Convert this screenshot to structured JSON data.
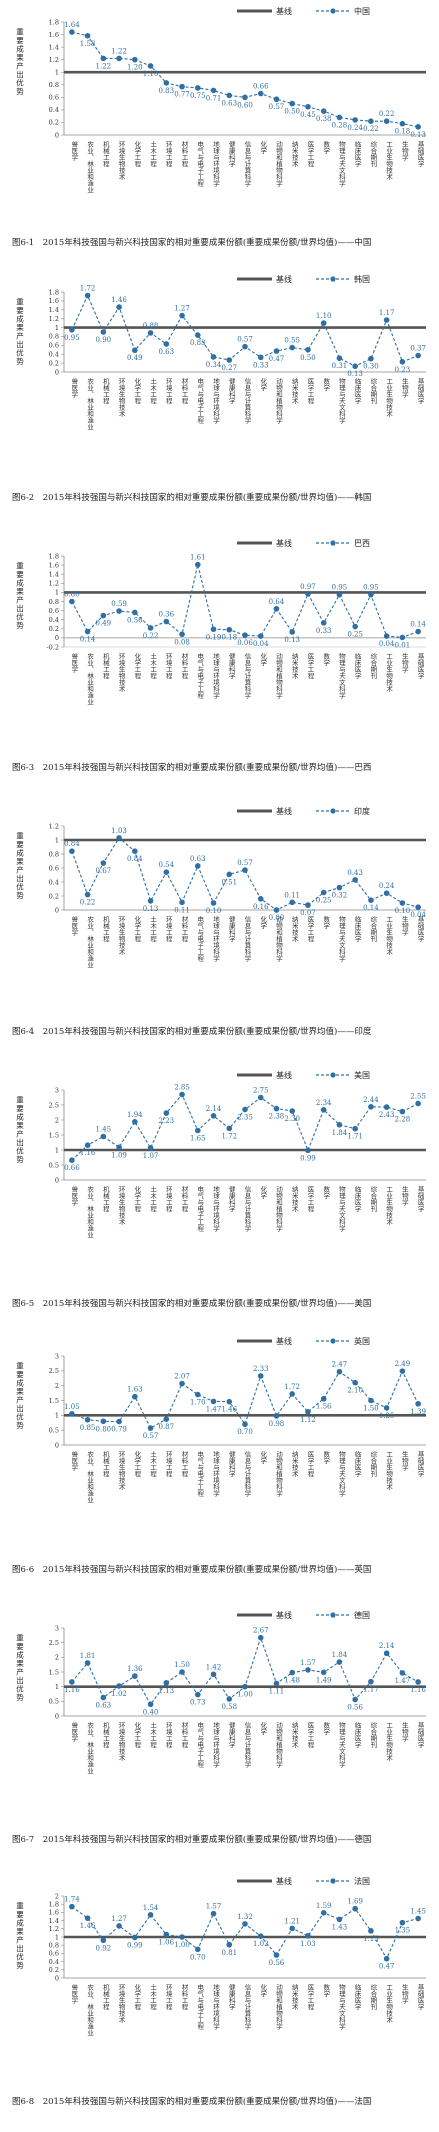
{
  "colors": {
    "baseline": "#555555",
    "series": "#2f6fa3",
    "grid": "#bbbbbb",
    "axis": "#888888"
  },
  "chart_data": [
    {
      "type": "line",
      "caption": "图6-1　2015年科技强国与新兴科技国家的相对重要成果份额(重要成果份额/世界均值)——中国",
      "ylabel": "重要成果产出优势",
      "legend": {
        "baseline": "基线",
        "series": "中国"
      },
      "ylim": [
        0,
        1.8
      ],
      "yticks": [
        "0",
        "0.2",
        "0.4",
        "0.6",
        "0.8",
        "1",
        "1.2",
        "1.4",
        "1.6",
        "1.8"
      ],
      "categories": [
        "兽医学",
        "农业、林业和渔业",
        "机械工程",
        "环境生物技术",
        "化学工程",
        "土木工程",
        "环境工程",
        "材料工程",
        "电气与电子工程",
        "地球与环境科学",
        "健康科学",
        "信息与计算科学",
        "化学",
        "动物和植物科学",
        "纳米技术",
        "医学工程",
        "数学",
        "物理与天文科学",
        "临床医学",
        "综合期刊",
        "工业生物技术",
        "生物学",
        "基础医学"
      ],
      "baseline": 1,
      "values": [
        1.64,
        1.58,
        1.22,
        1.22,
        1.2,
        1.1,
        0.83,
        0.77,
        0.75,
        0.71,
        0.63,
        0.6,
        0.66,
        0.57,
        0.5,
        0.45,
        0.38,
        0.28,
        0.24,
        0.22,
        0.22,
        0.18,
        0.13
      ]
    },
    {
      "type": "line",
      "caption": "图6-2　2015年科技强国与新兴科技国家的相对重要成果份额(重要成果份额/世界均值)——韩国",
      "ylabel": "重要成果产出优势",
      "legend": {
        "baseline": "基线",
        "series": "韩国"
      },
      "ylim": [
        0,
        1.8
      ],
      "yticks": [
        "0",
        "0.2",
        "0.4",
        "0.6",
        "0.8",
        "1",
        "1.2",
        "1.4",
        "1.6",
        "1.8"
      ],
      "categories": [
        "兽医学",
        "农业、林业和渔业",
        "机械工程",
        "环境生物技术",
        "化学工程",
        "土木工程",
        "环境工程",
        "材料工程",
        "电气与电子工程",
        "地球与环境科学",
        "健康科学",
        "信息与计算科学",
        "化学",
        "动物和植物科学",
        "纳米技术",
        "医学工程",
        "数学",
        "物理与天文科学",
        "临床医学",
        "综合期刊",
        "工业生物技术",
        "生物学",
        "基础医学"
      ],
      "baseline": 1,
      "values": [
        0.95,
        1.72,
        0.9,
        1.46,
        0.49,
        0.88,
        0.63,
        1.27,
        0.83,
        0.34,
        0.27,
        0.57,
        0.33,
        0.47,
        0.55,
        0.5,
        1.1,
        0.31,
        0.13,
        0.3,
        1.17,
        0.23,
        0.37
      ]
    },
    {
      "type": "line",
      "caption": "图6-3　2015年科技强国与新兴科技国家的相对重要成果份额(重要成果份额/世界均值)——巴西",
      "ylabel": "重要成果产出优势",
      "legend": {
        "baseline": "基线",
        "series": "巴西"
      },
      "ylim": [
        -0.2,
        1.8
      ],
      "yticks": [
        "-0.2",
        "0",
        "0.2",
        "0.4",
        "0.6",
        "0.8",
        "1",
        "1.2",
        "1.4",
        "1.6",
        "1.8"
      ],
      "categories": [
        "兽医学",
        "农业、林业和渔业",
        "机械工程",
        "环境生物技术",
        "化学工程",
        "土木工程",
        "环境工程",
        "材料工程",
        "电气与电子工程",
        "地球与环境科学",
        "健康科学",
        "信息与计算科学",
        "化学",
        "动物和植物科学",
        "纳米技术",
        "医学工程",
        "数学",
        "物理与天文科学",
        "临床医学",
        "综合期刊",
        "工业生物技术",
        "生物学",
        "基础医学"
      ],
      "baseline": 1,
      "values": [
        0.8,
        0.14,
        0.49,
        0.59,
        0.56,
        0.22,
        0.36,
        0.08,
        1.61,
        0.19,
        0.18,
        0.06,
        0.04,
        0.64,
        0.13,
        0.97,
        0.33,
        0.95,
        0.25,
        0.95,
        0.04,
        0.01,
        0.14
      ]
    },
    {
      "type": "line",
      "caption": "图6-4　2015年科技强国与新兴科技国家的相对重要成果份额(重要成果份额/世界均值)——印度",
      "ylabel": "重要成果产出优势",
      "legend": {
        "baseline": "基线",
        "series": "印度"
      },
      "ylim": [
        0,
        1.2
      ],
      "yticks": [
        "0",
        "0.2",
        "0.4",
        "0.6",
        "0.8",
        "1",
        "1.2"
      ],
      "categories": [
        "兽医学",
        "农业、林业和渔业",
        "机械工程",
        "环境生物技术",
        "化学工程",
        "土木工程",
        "环境工程",
        "材料工程",
        "电气与电子工程",
        "地球与环境科学",
        "健康科学",
        "信息与计算科学",
        "化学",
        "动物和植物科学",
        "纳米技术",
        "医学工程",
        "数学",
        "物理与天文科学",
        "临床医学",
        "综合期刊",
        "工业生物技术",
        "生物学",
        "基础医学"
      ],
      "baseline": 1,
      "values": [
        0.84,
        0.22,
        0.67,
        1.03,
        0.84,
        0.13,
        0.54,
        0.11,
        0.63,
        0.1,
        0.51,
        0.57,
        0.16,
        0.0,
        0.11,
        0.07,
        0.25,
        0.32,
        0.43,
        0.14,
        0.24,
        0.1,
        0.04
      ]
    },
    {
      "type": "line",
      "caption": "图6-5　2015年科技强国与新兴科技国家的相对重要成果份额(重要成果份额/世界均值)——美国",
      "ylabel": "重要成果产出优势",
      "legend": {
        "baseline": "基线",
        "series": "美国"
      },
      "ylim": [
        0,
        3
      ],
      "yticks": [
        "0",
        "0.5",
        "1",
        "1.5",
        "2",
        "2.5",
        "3"
      ],
      "categories": [
        "兽医学",
        "农业、林业和渔业",
        "机械工程",
        "环境生物技术",
        "化学工程",
        "土木工程",
        "环境工程",
        "材料工程",
        "电气与电子工程",
        "地球与环境科学",
        "健康科学",
        "信息与计算科学",
        "化学",
        "动物和植物科学",
        "纳米技术",
        "医学工程",
        "数学",
        "物理与天文科学",
        "临床医学",
        "综合期刊",
        "工业生物技术",
        "生物学",
        "基础医学"
      ],
      "baseline": 1,
      "values": [
        0.66,
        1.16,
        1.45,
        1.09,
        1.94,
        1.07,
        2.23,
        2.85,
        1.65,
        2.14,
        1.72,
        2.35,
        2.75,
        2.38,
        2.3,
        0.99,
        2.34,
        1.84,
        1.71,
        2.44,
        2.43,
        2.28,
        2.55
      ]
    },
    {
      "type": "line",
      "caption": "图6-6　2015年科技强国与新兴科技国家的相对重要成果份额(重要成果份额/世界均值)——英国",
      "ylabel": "重要成果产出优势",
      "legend": {
        "baseline": "基线",
        "series": "英国"
      },
      "ylim": [
        0,
        3
      ],
      "yticks": [
        "0",
        "0.5",
        "1",
        "1.5",
        "2",
        "2.5",
        "3"
      ],
      "categories": [
        "兽医学",
        "农业、林业和渔业",
        "机械工程",
        "环境生物技术",
        "化学工程",
        "土木工程",
        "环境工程",
        "材料工程",
        "电气与电子工程",
        "地球与环境科学",
        "健康科学",
        "信息与计算科学",
        "化学",
        "动物和植物科学",
        "纳米技术",
        "医学工程",
        "数学",
        "物理与天文科学",
        "临床医学",
        "综合期刊",
        "工业生物技术",
        "生物学",
        "基础医学"
      ],
      "baseline": 1,
      "values": [
        1.05,
        0.85,
        0.8,
        0.79,
        1.63,
        0.57,
        0.87,
        2.07,
        1.7,
        1.47,
        1.46,
        0.7,
        2.33,
        0.98,
        1.72,
        1.12,
        1.56,
        2.47,
        2.1,
        1.5,
        1.25,
        2.49,
        1.39
      ]
    },
    {
      "type": "line",
      "caption": "图6-7　2015年科技强国与新兴科技国家的相对重要成果份额(重要成果份额/世界均值)——德国",
      "ylabel": "重要成果产出优势",
      "legend": {
        "baseline": "基线",
        "series": "德国"
      },
      "ylim": [
        0,
        3
      ],
      "yticks": [
        "0",
        "0.5",
        "1",
        "1.5",
        "2",
        "2.5",
        "3"
      ],
      "categories": [
        "兽医学",
        "农业、林业和渔业",
        "机械工程",
        "环境生物技术",
        "化学工程",
        "土木工程",
        "环境工程",
        "材料工程",
        "电气与电子工程",
        "地球与环境科学",
        "健康科学",
        "信息与计算科学",
        "化学",
        "动物和植物科学",
        "纳米技术",
        "医学工程",
        "数学",
        "物理与天文科学",
        "临床医学",
        "综合期刊",
        "工业生物技术",
        "生物学",
        "基础医学"
      ],
      "baseline": 1,
      "values": [
        1.16,
        1.81,
        0.63,
        1.02,
        1.36,
        0.4,
        1.13,
        1.5,
        0.73,
        1.42,
        0.58,
        1.0,
        2.67,
        1.11,
        1.48,
        1.57,
        1.49,
        1.84,
        0.56,
        1.17,
        2.14,
        1.47,
        1.16
      ]
    },
    {
      "type": "line",
      "caption": "图6-8　2015年科技强国与新兴科技国家的相对重要成果份额(重要成果份额/世界均值)——法国",
      "ylabel": "重要成果产出优势",
      "legend": {
        "baseline": "基线",
        "series": "法国"
      },
      "ylim": [
        0,
        2
      ],
      "yticks": [
        "0",
        "0.2",
        "0.4",
        "0.6",
        "0.8",
        "1",
        "1.2",
        "1.4",
        "1.6",
        "1.8",
        "2"
      ],
      "categories": [
        "兽医学",
        "农业、林业和渔业",
        "机械工程",
        "环境生物技术",
        "化学工程",
        "土木工程",
        "环境工程",
        "材料工程",
        "电气与电子工程",
        "地球与环境科学",
        "健康科学",
        "信息与计算科学",
        "化学",
        "动物和植物科学",
        "纳米技术",
        "医学工程",
        "数学",
        "物理与天文科学",
        "临床医学",
        "综合期刊",
        "工业生物技术",
        "生物学",
        "基础医学"
      ],
      "baseline": 1,
      "values": [
        1.74,
        1.46,
        0.92,
        1.27,
        0.99,
        1.54,
        1.06,
        1.0,
        0.7,
        1.57,
        0.81,
        1.32,
        1.02,
        0.56,
        1.21,
        1.03,
        1.59,
        1.43,
        1.69,
        1.15,
        0.47,
        1.35,
        1.45
      ]
    }
  ]
}
